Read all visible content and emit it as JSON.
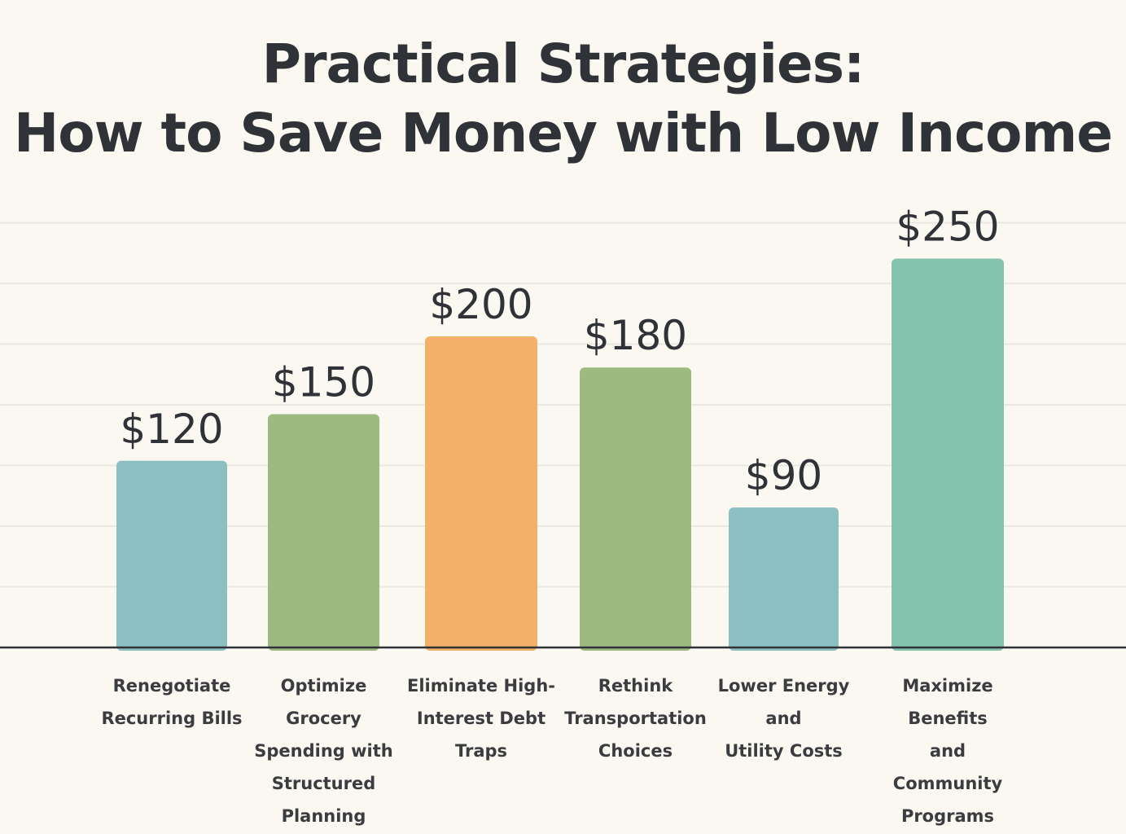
{
  "chart_data": {
    "type": "bar",
    "title": [
      "Practical Strategies:",
      "How to Save Money with Low Income"
    ],
    "categories": [
      [
        "Renegotiate",
        "Recurring Bills"
      ],
      [
        "Optimize Grocery",
        "Spending with",
        "Structured",
        "Planning"
      ],
      [
        "Eliminate High-",
        "Interest Debt",
        "Traps"
      ],
      [
        "Rethink",
        "Transportation",
        "Choices"
      ],
      [
        "Lower Energy",
        "and",
        "Utility Costs"
      ],
      [
        "Maximize Benefits",
        "and",
        "Community",
        "Programs"
      ]
    ],
    "values": [
      120,
      150,
      200,
      180,
      90,
      250
    ],
    "data_labels": [
      "$120",
      "$150",
      "$200",
      "$180",
      "$90",
      "$250"
    ],
    "colors": [
      "#8bbfc2",
      "#9dba80",
      "#f2b069",
      "#9dba80",
      "#8bbfc2",
      "#86c3ae"
    ],
    "xlabel": "",
    "ylabel": "",
    "ylim": [
      0,
      275
    ],
    "grid": true,
    "legend": "none"
  }
}
